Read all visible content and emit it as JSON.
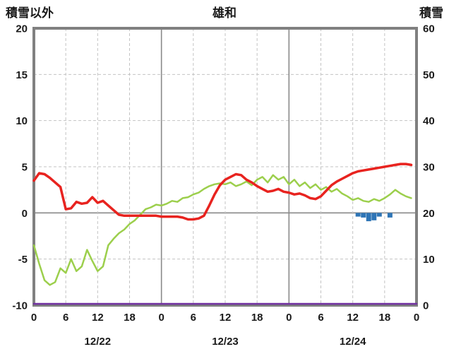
{
  "chart_data": {
    "type": "line",
    "title": "雄和",
    "left_axis": {
      "label": "積雪以外",
      "min": -10,
      "max": 20,
      "ticks": [
        20,
        15,
        10,
        5,
        0,
        -5,
        -10
      ]
    },
    "right_axis": {
      "label": "積雪",
      "min": 0,
      "max": 60,
      "ticks": [
        60,
        50,
        40,
        30,
        20,
        10,
        0
      ]
    },
    "x_axis": {
      "total_hours": 72,
      "tick_hours": [
        0,
        6,
        12,
        18,
        24,
        30,
        36,
        42,
        48,
        54,
        60,
        66,
        72
      ],
      "tick_labels": [
        "0",
        "6",
        "12",
        "18",
        "0",
        "6",
        "12",
        "18",
        "0",
        "6",
        "12",
        "18",
        "0"
      ],
      "day_labels": [
        "12/22",
        "12/23",
        "12/24"
      ],
      "day_label_hours": [
        12,
        36,
        60
      ]
    },
    "colors": {
      "grid_dashed": "#c3c3c3",
      "grid_solid": "#8a8a8a",
      "frame": "#808080",
      "text": "#1a1a1a"
    },
    "series": [
      {
        "name": "green-line",
        "type": "line",
        "color": "#9ccf4c",
        "width": 2.5,
        "values": [
          -3.5,
          -5.5,
          -7.3,
          -7.8,
          -7.5,
          -6.0,
          -6.5,
          -5.0,
          -6.3,
          -5.8,
          -4.0,
          -5.2,
          -6.3,
          -5.8,
          -3.5,
          -2.8,
          -2.2,
          -1.8,
          -1.2,
          -0.8,
          -0.2,
          0.4,
          0.6,
          0.9,
          0.8,
          1.0,
          1.3,
          1.2,
          1.6,
          1.7,
          2.0,
          2.2,
          2.6,
          2.9,
          3.1,
          3.2,
          3.1,
          3.3,
          2.9,
          3.1,
          3.4,
          3.0,
          3.6,
          3.9,
          3.3,
          4.1,
          3.6,
          3.9,
          3.1,
          3.6,
          2.9,
          3.3,
          2.7,
          3.1,
          2.5,
          2.8,
          2.3,
          2.6,
          2.1,
          1.8,
          1.4,
          1.6,
          1.3,
          1.2,
          1.5,
          1.3,
          1.6,
          2.0,
          2.5,
          2.1,
          1.8,
          1.6
        ]
      },
      {
        "name": "red-line",
        "type": "line",
        "color": "#e8231f",
        "width": 3.5,
        "values": [
          3.5,
          4.3,
          4.2,
          3.8,
          3.3,
          2.8,
          0.4,
          0.5,
          1.2,
          1.0,
          1.1,
          1.7,
          1.1,
          1.3,
          0.8,
          0.3,
          -0.2,
          -0.3,
          -0.3,
          -0.3,
          -0.3,
          -0.3,
          -0.3,
          -0.3,
          -0.4,
          -0.4,
          -0.4,
          -0.4,
          -0.5,
          -0.7,
          -0.7,
          -0.6,
          -0.3,
          0.8,
          2.0,
          3.0,
          3.6,
          3.9,
          4.2,
          4.1,
          3.6,
          3.3,
          2.9,
          2.6,
          2.3,
          2.4,
          2.6,
          2.3,
          2.2,
          2.0,
          2.1,
          1.9,
          1.6,
          1.5,
          1.8,
          2.4,
          3.0,
          3.4,
          3.7,
          4.0,
          4.3,
          4.5,
          4.6,
          4.7,
          4.8,
          4.9,
          5.0,
          5.1,
          5.2,
          5.3,
          5.3,
          5.2
        ]
      },
      {
        "name": "blue-bars",
        "type": "bar",
        "color": "#2e75b6",
        "points": [
          {
            "hour": 61,
            "value": -0.4
          },
          {
            "hour": 62,
            "value": -0.5
          },
          {
            "hour": 63,
            "value": -0.9
          },
          {
            "hour": 64,
            "value": -0.8
          },
          {
            "hour": 65,
            "value": -0.4
          },
          {
            "hour": 67,
            "value": -0.5
          }
        ]
      },
      {
        "name": "purple-line",
        "type": "constant",
        "color": "#7030a0",
        "width": 2.5,
        "constant": -10
      }
    ]
  }
}
